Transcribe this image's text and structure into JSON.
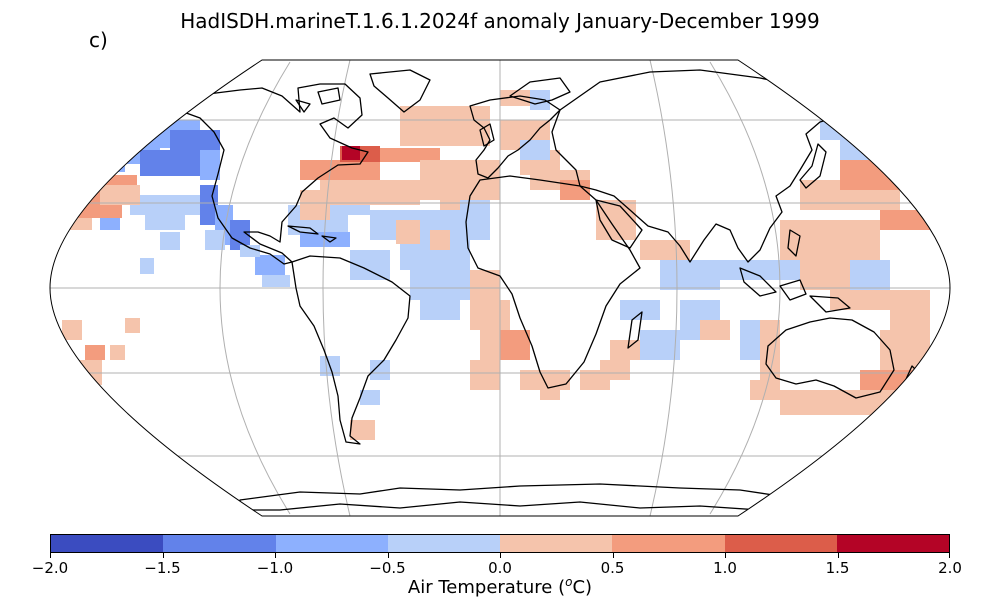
{
  "title": "HadISDH.marineT.1.6.1.2024f anomaly January-December 1999",
  "panel_label": "c)",
  "colorbar": {
    "label_prefix": "Air Temperature (",
    "label_sup": "o",
    "label_suffix": "C)",
    "ticks": [
      "−2.0",
      "−1.5",
      "−1.0",
      "−0.5",
      "0.0",
      "0.5",
      "1.0",
      "1.5",
      "2.0"
    ],
    "colors": [
      "#3b4cc0",
      "#6282ea",
      "#8db0fe",
      "#b8d0f9",
      "#f5c4ac",
      "#f39c7e",
      "#dc5d4a",
      "#b40426"
    ]
  },
  "map": {
    "projection": "Robinson",
    "ocean_color": "#ffffff",
    "graticule_color": "#b0b0b0",
    "coastline_color": "#000000"
  },
  "chart_data": {
    "type": "heatmap",
    "variable": "Air Temperature anomaly",
    "unit": "oC",
    "range": [
      -2.0,
      2.0
    ],
    "bins": [
      -2.0,
      -1.5,
      -1.0,
      -0.5,
      0.0,
      0.5,
      1.0,
      1.5,
      2.0
    ],
    "regions": [
      {
        "region": "NE Pacific / off western North America",
        "bin": [
          -1.5,
          -1.0
        ]
      },
      {
        "region": "Gulf of Alaska",
        "bin": [
          -1.0,
          -0.5
        ]
      },
      {
        "region": "Central North Pacific (Hawaii latitudes)",
        "bin": [
          0.5,
          1.0
        ]
      },
      {
        "region": "Eastern tropical Pacific",
        "bin": [
          -1.5,
          -0.5
        ]
      },
      {
        "region": "Gulf of Mexico / Caribbean",
        "bin": [
          -1.0,
          -0.5
        ]
      },
      {
        "region": "NW Atlantic off Nova Scotia",
        "bin": [
          1.5,
          2.0
        ]
      },
      {
        "region": "North Atlantic",
        "bin": [
          0.0,
          1.0
        ]
      },
      {
        "region": "Mediterranean",
        "bin": [
          0.0,
          0.5
        ]
      },
      {
        "region": "Eastern North Atlantic",
        "bin": [
          -0.5,
          0.0
        ]
      },
      {
        "region": "Tropical Atlantic",
        "bin": [
          -0.5,
          0.0
        ]
      },
      {
        "region": "South Atlantic",
        "bin": [
          0.0,
          0.5
        ]
      },
      {
        "region": "Arabian Sea",
        "bin": [
          0.0,
          0.5
        ]
      },
      {
        "region": "Indian Ocean",
        "bin": [
          -0.5,
          0.0
        ]
      },
      {
        "region": "NW Pacific / Japan",
        "bin": [
          0.5,
          1.0
        ]
      },
      {
        "region": "Western Pacific",
        "bin": [
          0.0,
          0.5
        ]
      },
      {
        "region": "Southwest Pacific / Tasman Sea",
        "bin": [
          0.0,
          1.0
        ]
      },
      {
        "region": "South Pacific east",
        "bin": [
          0.0,
          1.0
        ]
      }
    ]
  }
}
